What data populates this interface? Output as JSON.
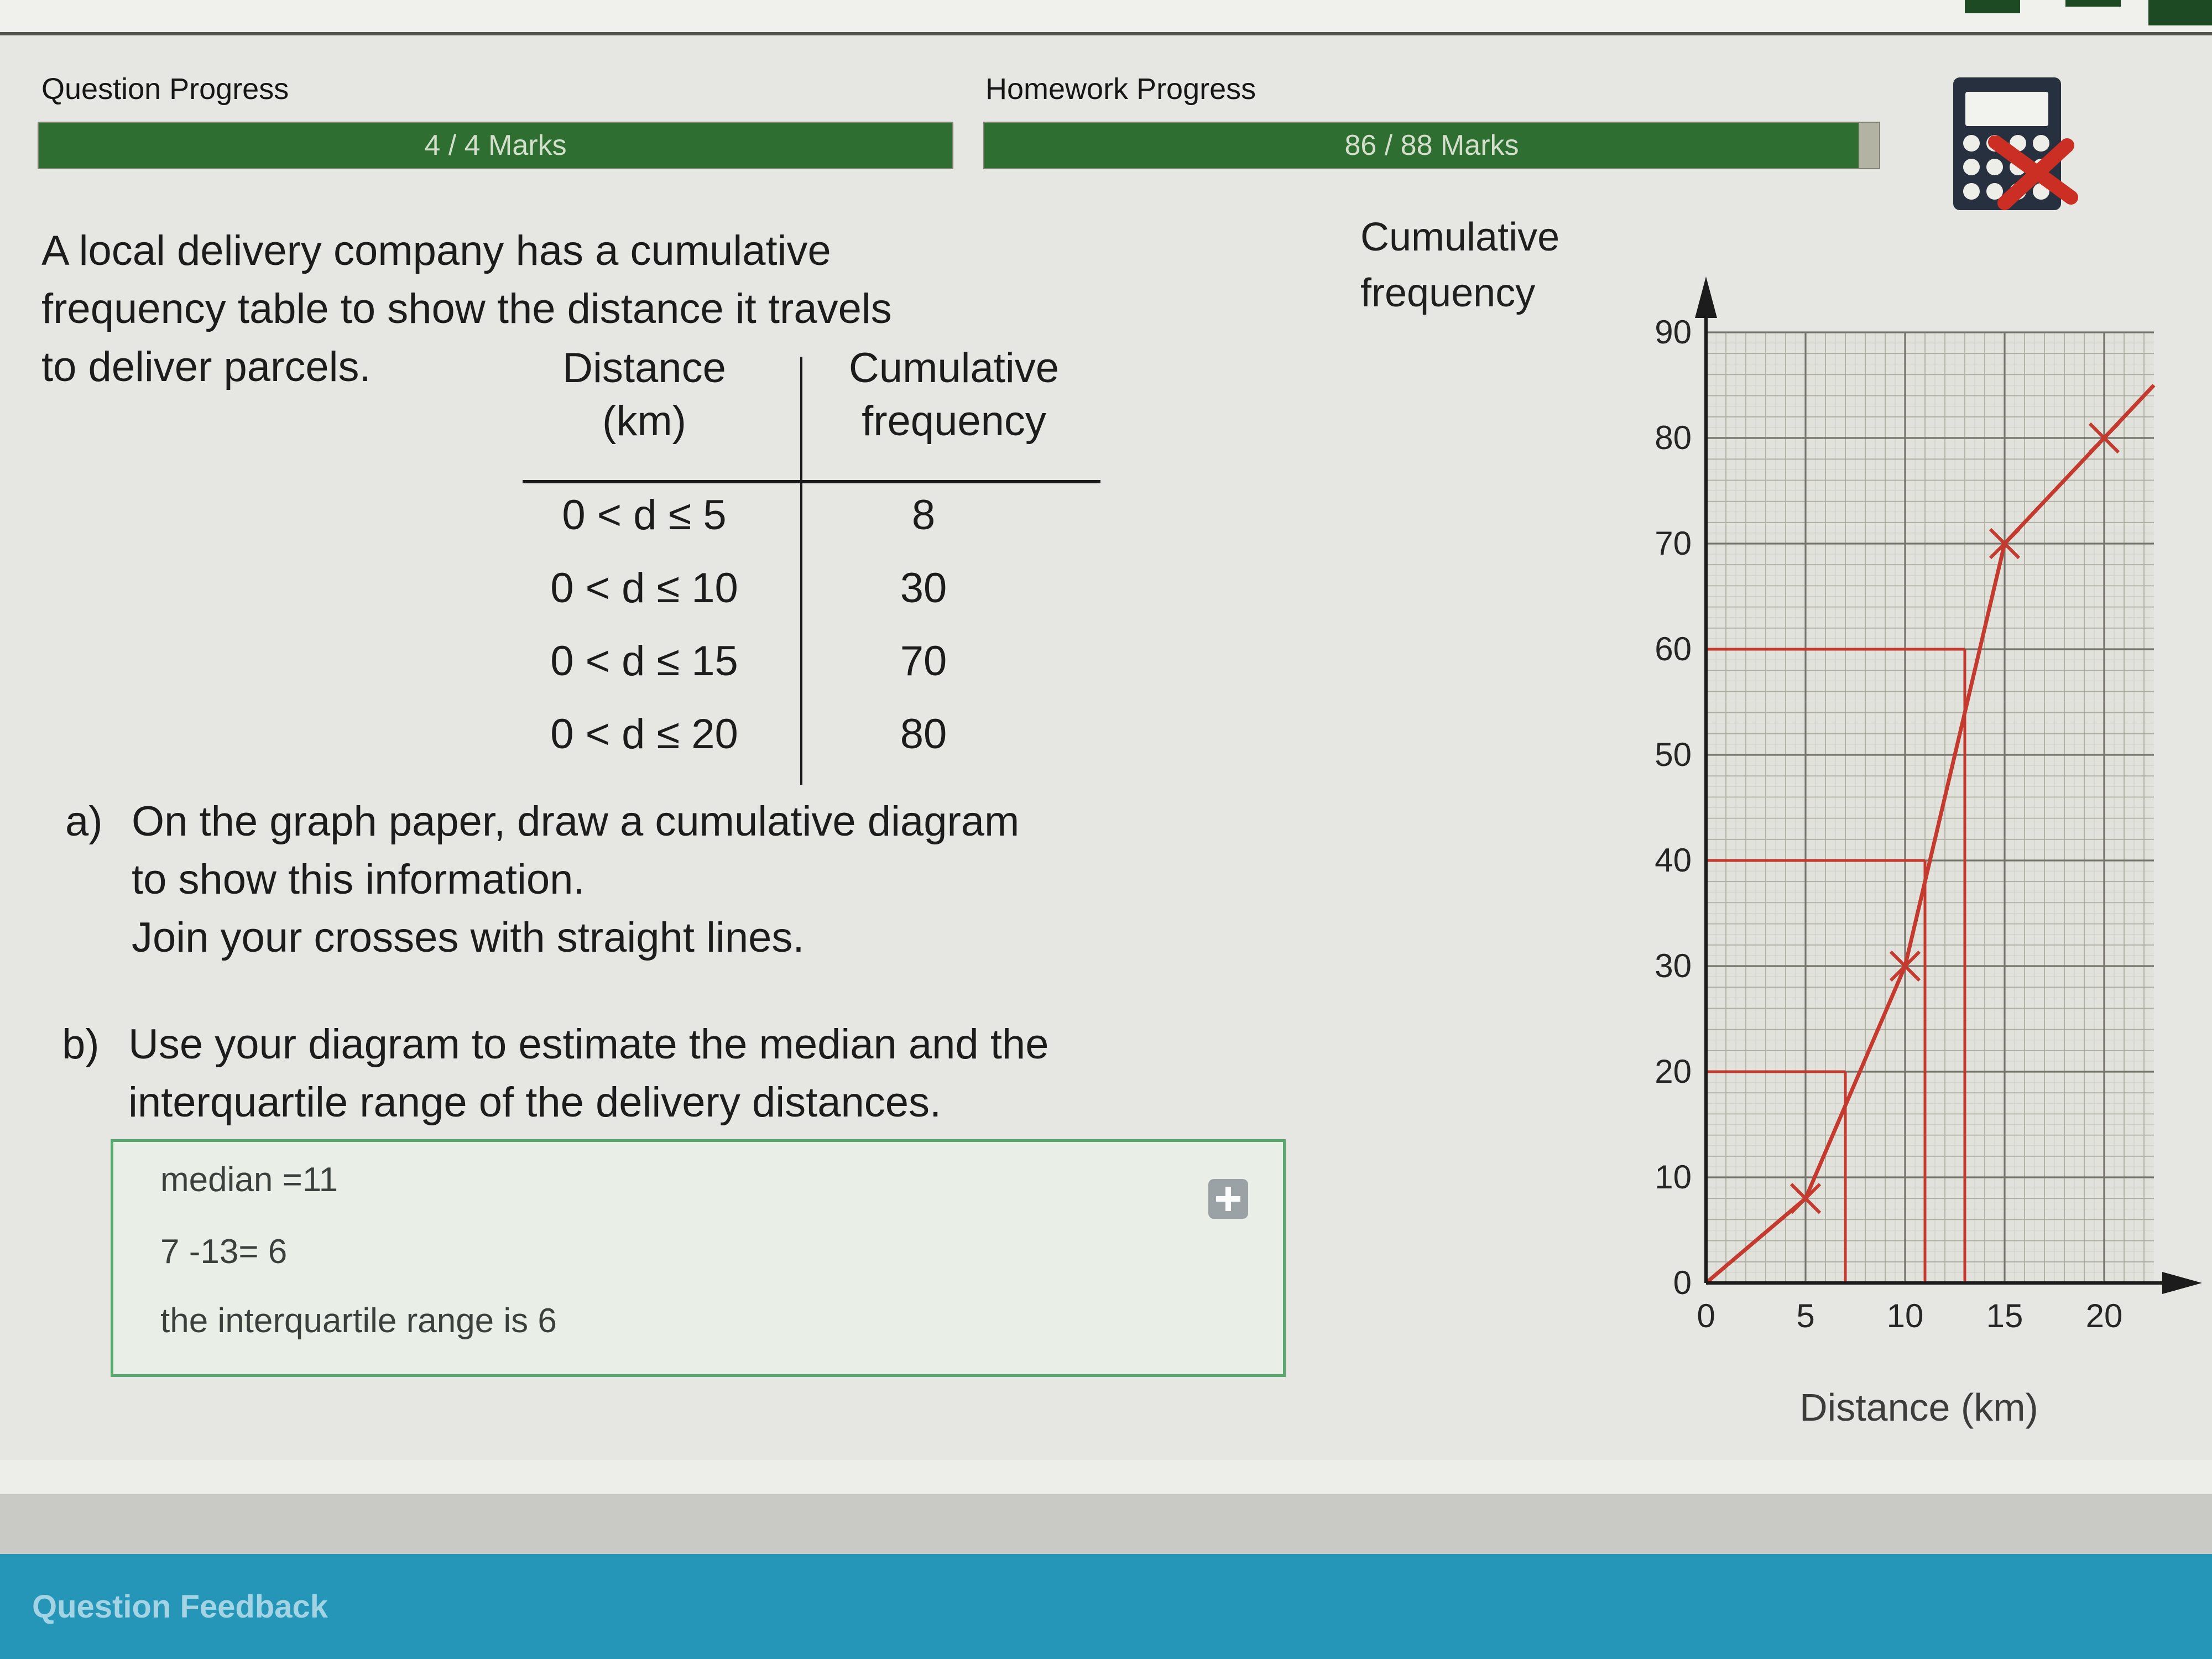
{
  "header": {
    "question_progress_label": "Question Progress",
    "question_progress_value": "4 / 4 Marks",
    "homework_progress_label": "Homework Progress",
    "homework_progress_value": "86 / 88 Marks",
    "homework_fill_percent": 97.7,
    "bar_color": "#2e6e31"
  },
  "question": {
    "intro_lines": [
      "A local delivery company has a cumulative",
      "frequency table to show the distance it travels",
      "to deliver parcels."
    ],
    "table": {
      "headers": [
        [
          "Distance",
          "(km)"
        ],
        [
          "Cumulative",
          "frequency"
        ]
      ],
      "rows": [
        [
          "0 < d ≤ 5",
          "8"
        ],
        [
          "0 < d ≤ 10",
          "30"
        ],
        [
          "0 < d ≤ 15",
          "70"
        ],
        [
          "0 < d ≤ 20",
          "80"
        ]
      ]
    },
    "part_a": {
      "label": "a)",
      "lines": [
        "On the graph paper, draw a cumulative diagram",
        "to show this information.",
        "Join your crosses with straight lines."
      ]
    },
    "part_b": {
      "label": "b)",
      "lines": [
        "Use your diagram to estimate the median and the",
        "interquartile range of the delivery distances."
      ]
    }
  },
  "answer_box": {
    "lines": [
      "median =11",
      "7 -13= 6",
      "the interquartile range is 6"
    ]
  },
  "chart_data": {
    "type": "line",
    "title_lines": [
      "Cumulative",
      "frequency"
    ],
    "xlabel": "Distance (km)",
    "x_ticks": [
      0,
      5,
      10,
      15,
      20
    ],
    "y_ticks": [
      0,
      10,
      20,
      30,
      40,
      50,
      60,
      70,
      80,
      90
    ],
    "xlim": [
      0,
      22.5
    ],
    "ylim": [
      0,
      90
    ],
    "points": [
      [
        0,
        0
      ],
      [
        5,
        8
      ],
      [
        10,
        30
      ],
      [
        15,
        70
      ],
      [
        20,
        80
      ]
    ],
    "crosses": [
      [
        5,
        8
      ],
      [
        10,
        30
      ],
      [
        15,
        70
      ],
      [
        20,
        80
      ]
    ],
    "line_extension": [
      22.5,
      85
    ],
    "guides": [
      {
        "cf": 60,
        "distance": 13
      },
      {
        "cf": 40,
        "distance": 11
      },
      {
        "cf": 20,
        "distance": 7
      }
    ],
    "line_color": "#c43a2e",
    "grid": {
      "x_major": 5,
      "x_minor": 1,
      "x_fine": 0.5,
      "y_major": 10,
      "y_minor": 2,
      "y_fine": 1
    }
  },
  "icons": {
    "calculator": "calculator-icon",
    "red_cross": "red-cross-icon",
    "expand": "plus-expand-icon"
  },
  "footer": {
    "feedback_label": "Question Feedback"
  }
}
